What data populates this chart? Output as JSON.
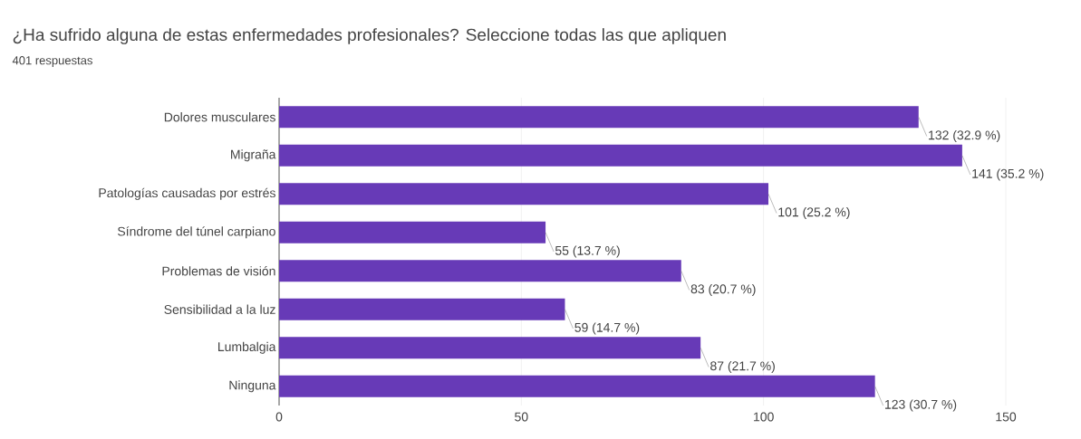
{
  "chart_data": {
    "type": "bar",
    "orientation": "horizontal",
    "title": "¿Ha sufrido alguna de estas enfermedades profesionales? Seleccione todas las que apliquen",
    "subtitle": "401 respuestas",
    "categories": [
      "Dolores musculares",
      "Migraña",
      "Patologías causadas por estrés",
      "Síndrome del túnel carpiano",
      "Problemas de visión",
      "Sensibilidad a la luz",
      "Lumbalgia",
      "Ninguna"
    ],
    "values": [
      132,
      141,
      101,
      55,
      83,
      59,
      87,
      123
    ],
    "value_labels": [
      "132 (32.9 %)",
      "141 (35.2 %)",
      "101 (25.2 %)",
      "55 (13.7 %)",
      "83 (20.7 %)",
      "59 (14.7 %)",
      "87 (21.7 %)",
      "123 (30.7 %)"
    ],
    "color": "#673ab7",
    "xlim": [
      0,
      150
    ],
    "xticks": [
      0,
      50,
      100,
      150
    ],
    "grid": "x"
  }
}
